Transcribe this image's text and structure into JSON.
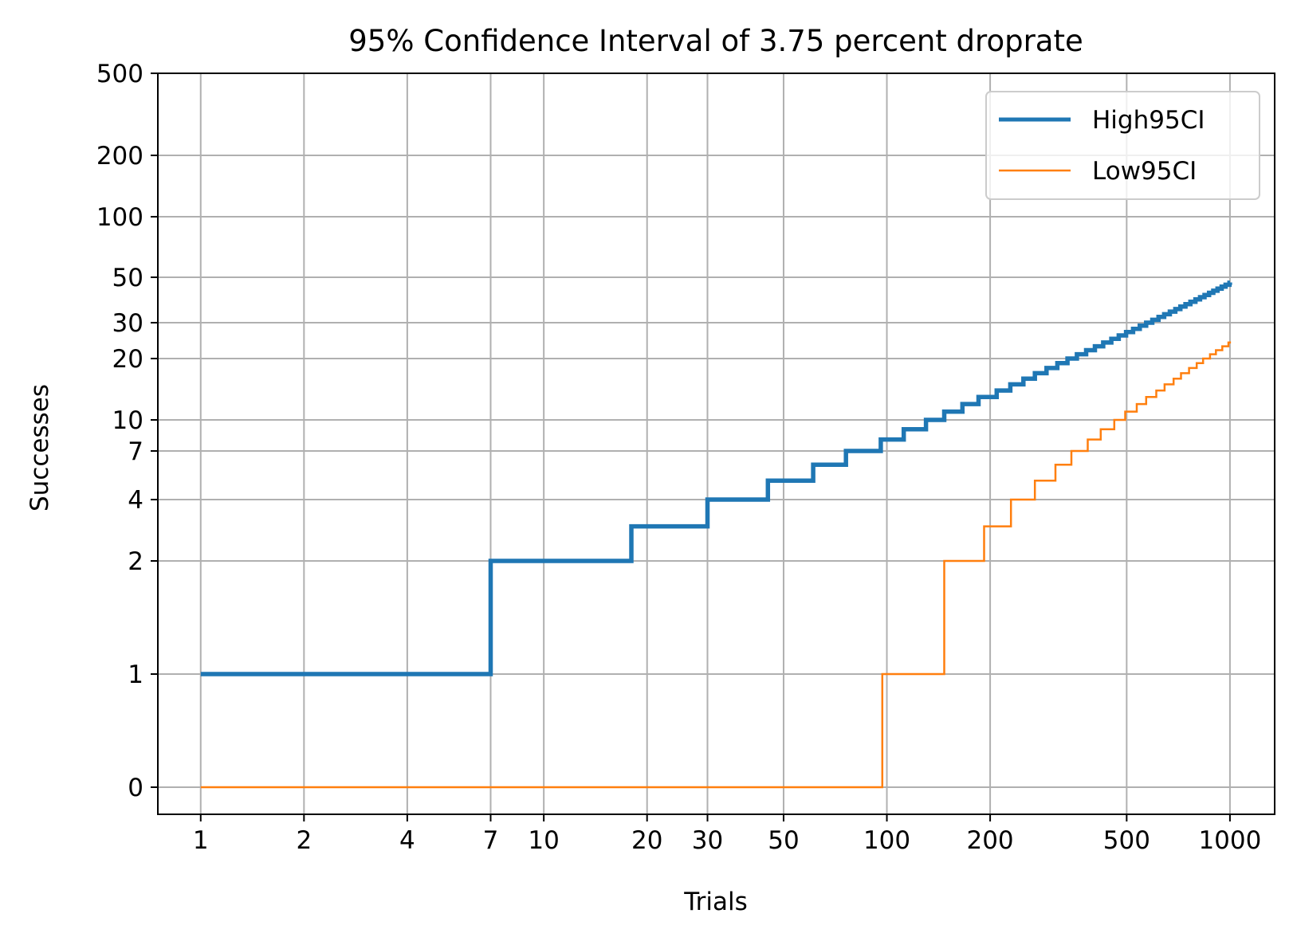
{
  "chart_data": {
    "type": "line",
    "title": "95% Confidence Interval of 3.75 percent droprate",
    "xlabel": "Trials",
    "ylabel": "Successes",
    "x_scale": "log",
    "y_scale": "custom-nonlinear",
    "xlim": [
      0.75,
      1350
    ],
    "ylim": [
      -0.22,
      500
    ],
    "x_ticks": [
      1,
      2,
      4,
      7,
      10,
      20,
      30,
      50,
      100,
      200,
      500,
      1000
    ],
    "x_tick_labels": [
      "1",
      "2",
      "4",
      "7",
      "10",
      "20",
      "30",
      "50",
      "100",
      "200",
      "500",
      "1000"
    ],
    "y_ticks": [
      0,
      1,
      2,
      4,
      7,
      10,
      20,
      30,
      50,
      100,
      200,
      500
    ],
    "y_tick_labels": [
      "0",
      "1",
      "2",
      "4",
      "7",
      "10",
      "20",
      "30",
      "50",
      "100",
      "200",
      "500"
    ],
    "grid": true,
    "legend_position": "top-right",
    "series": [
      {
        "name": "High95CI",
        "color": "#1f77b4",
        "steps": [
          [
            1,
            1
          ],
          [
            7,
            2
          ],
          [
            18,
            3
          ],
          [
            30,
            4
          ],
          [
            45,
            5
          ],
          [
            61,
            6
          ],
          [
            76,
            7
          ],
          [
            96,
            8
          ],
          [
            112,
            9
          ],
          [
            130,
            10
          ],
          [
            147,
            11
          ],
          [
            166,
            12
          ],
          [
            185,
            13
          ],
          [
            209,
            14
          ],
          [
            229,
            15
          ],
          [
            250,
            16
          ],
          [
            270,
            17
          ],
          [
            292,
            18
          ],
          [
            314,
            19
          ],
          [
            336,
            20
          ],
          [
            358,
            21
          ],
          [
            381,
            22
          ],
          [
            404,
            23
          ],
          [
            427,
            24
          ],
          [
            451,
            25
          ],
          [
            474,
            26
          ],
          [
            498,
            27
          ],
          [
            522,
            28
          ],
          [
            546,
            29
          ],
          [
            570,
            30
          ],
          [
            594,
            31
          ],
          [
            619,
            32
          ],
          [
            643,
            33
          ],
          [
            668,
            34
          ],
          [
            693,
            35
          ],
          [
            717,
            36
          ],
          [
            742,
            37
          ],
          [
            767,
            38
          ],
          [
            793,
            39
          ],
          [
            818,
            40
          ],
          [
            843,
            41
          ],
          [
            869,
            42
          ],
          [
            894,
            43
          ],
          [
            920,
            44
          ],
          [
            946,
            45
          ],
          [
            971,
            46
          ],
          [
            997,
            47
          ],
          [
            1000,
            47.2
          ]
        ]
      },
      {
        "name": "Low95CI",
        "color": "#ff7f0e",
        "steps": [
          [
            1,
            0
          ],
          [
            97,
            1
          ],
          [
            147,
            2
          ],
          [
            192,
            3
          ],
          [
            230,
            4
          ],
          [
            270,
            5
          ],
          [
            310,
            6
          ],
          [
            345,
            7
          ],
          [
            385,
            8
          ],
          [
            420,
            9
          ],
          [
            460,
            10
          ],
          [
            495,
            11
          ],
          [
            535,
            12
          ],
          [
            570,
            13
          ],
          [
            610,
            14
          ],
          [
            645,
            15
          ],
          [
            685,
            16
          ],
          [
            720,
            17
          ],
          [
            760,
            18
          ],
          [
            800,
            19
          ],
          [
            835,
            20
          ],
          [
            875,
            21
          ],
          [
            910,
            22
          ],
          [
            950,
            23
          ],
          [
            990,
            24
          ],
          [
            1000,
            24.3
          ]
        ]
      }
    ]
  }
}
